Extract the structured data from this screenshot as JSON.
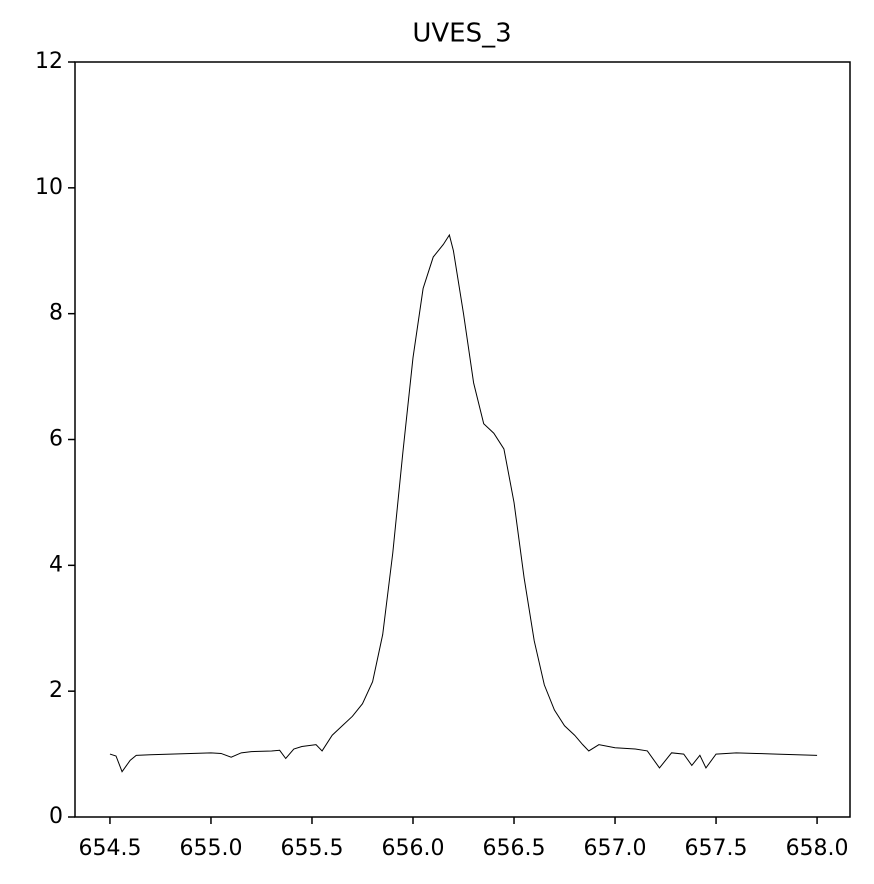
{
  "chart_data": {
    "type": "line",
    "title": "UVES_3",
    "x": [
      654.5,
      654.53,
      654.56,
      654.6,
      654.63,
      654.7,
      654.8,
      654.9,
      655.0,
      655.05,
      655.1,
      655.15,
      655.2,
      655.3,
      655.34,
      655.37,
      655.41,
      655.45,
      655.52,
      655.55,
      655.6,
      655.65,
      655.7,
      655.75,
      655.8,
      655.85,
      655.9,
      655.95,
      656.0,
      656.05,
      656.1,
      656.15,
      656.18,
      656.2,
      656.25,
      656.3,
      656.35,
      656.4,
      656.45,
      656.5,
      656.55,
      656.6,
      656.65,
      656.7,
      656.75,
      656.8,
      656.84,
      656.87,
      656.92,
      657.0,
      657.1,
      657.16,
      657.22,
      657.28,
      657.34,
      657.38,
      657.42,
      657.45,
      657.5,
      657.6,
      657.7,
      657.8,
      657.9,
      658.0
    ],
    "series": [
      {
        "name": "UVES_3",
        "color": "#000000",
        "values": [
          1.0,
          0.97,
          0.72,
          0.9,
          0.98,
          0.99,
          1.0,
          1.01,
          1.02,
          1.01,
          0.95,
          1.02,
          1.04,
          1.05,
          1.06,
          0.93,
          1.08,
          1.12,
          1.15,
          1.05,
          1.3,
          1.45,
          1.6,
          1.8,
          2.15,
          2.9,
          4.2,
          5.8,
          7.3,
          8.4,
          8.9,
          9.1,
          9.25,
          9.0,
          8.0,
          6.9,
          6.25,
          6.1,
          5.85,
          5.0,
          3.8,
          2.8,
          2.1,
          1.7,
          1.45,
          1.3,
          1.15,
          1.05,
          1.15,
          1.1,
          1.08,
          1.05,
          0.78,
          1.02,
          1.0,
          0.82,
          0.98,
          0.78,
          1.0,
          1.02,
          1.01,
          1.0,
          0.99,
          0.98
        ]
      }
    ],
    "xlim": [
      654.327,
      658.163
    ],
    "ylim": [
      0,
      12
    ],
    "xticks": [
      654.5,
      {
        "value": 655.0,
        "label": "655.0"
      },
      655.5,
      {
        "value": 656.0,
        "label": "656.0"
      },
      656.5,
      {
        "value": 657.0,
        "label": "657.0"
      },
      657.5,
      {
        "value": 658.0,
        "label": "658.0"
      }
    ],
    "yticks": [
      0,
      2,
      4,
      6,
      8,
      10,
      12
    ]
  }
}
